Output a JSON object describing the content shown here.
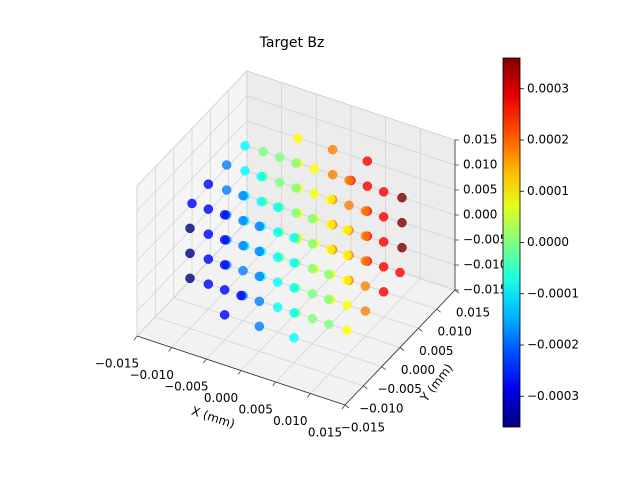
{
  "chart_data": {
    "type": "scatter3d",
    "title": "Target Bz",
    "xlabel": "X (mm)",
    "ylabel": "Y (mm)",
    "colormap": "jet",
    "x": [
      0,
      -0.005,
      0,
      0.005,
      -0.01,
      -0.005,
      0,
      0.005,
      0.01,
      -0.01,
      -0.005,
      0,
      0.005,
      0.01,
      -0.01,
      -0.005,
      0,
      0.005,
      0.01,
      -0.005,
      0,
      0.005,
      -0.01,
      -0.005,
      0,
      0.005,
      0.01,
      -0.01,
      -0.005,
      0,
      0.005,
      0.01,
      -0.01,
      -0.005,
      0,
      0.005,
      0.01,
      -0.01,
      -0.005,
      0,
      0.005,
      0.01,
      -0.01,
      -0.005,
      0,
      0.005,
      0.01,
      0,
      -0.01,
      -0.005,
      0,
      0.005,
      0.01,
      -0.01,
      -0.005,
      0,
      0.005,
      0.01,
      -0.015,
      -0.01,
      -0.005,
      0,
      0.005,
      0.01,
      0.015,
      -0.01,
      -0.005,
      0,
      0.005,
      0.01,
      -0.01,
      -0.005,
      0,
      0.005,
      0.01,
      0,
      -0.01,
      -0.005,
      0,
      0.005,
      0.01,
      -0.01,
      -0.005,
      0,
      0.005,
      0.01,
      -0.01,
      -0.005,
      0,
      0.005,
      0.01,
      -0.01,
      -0.005,
      0,
      0.005,
      0.01,
      -0.01,
      -0.005,
      0,
      0.005,
      0.01,
      -0.005,
      0,
      0.005,
      -0.01,
      -0.005,
      0,
      0.005,
      0.01,
      -0.01,
      -0.005,
      0,
      0.005,
      0.01,
      -0.01,
      -0.005,
      0,
      0.005,
      0.01,
      -0.005,
      0,
      0.005,
      0
    ],
    "y": [
      0,
      -0.01,
      -0.01,
      -0.01,
      -0.005,
      -0.005,
      -0.005,
      -0.005,
      -0.005,
      0,
      0,
      0,
      0,
      0,
      0.005,
      0.005,
      0.005,
      0.005,
      0.005,
      0.01,
      0.01,
      0.01,
      -0.01,
      -0.01,
      -0.01,
      -0.01,
      -0.01,
      -0.005,
      -0.005,
      -0.005,
      -0.005,
      -0.005,
      0,
      0,
      0,
      0,
      0,
      0.005,
      0.005,
      0.005,
      0.005,
      0.005,
      0.01,
      0.01,
      0.01,
      0.01,
      0.01,
      -0.015,
      -0.01,
      -0.01,
      -0.01,
      -0.01,
      -0.01,
      -0.005,
      -0.005,
      -0.005,
      -0.005,
      -0.005,
      0,
      0,
      0,
      0,
      0,
      0,
      0,
      0.005,
      0.005,
      0.005,
      0.005,
      0.005,
      0.01,
      0.01,
      0.01,
      0.01,
      0.01,
      0.015,
      -0.01,
      -0.01,
      -0.01,
      -0.01,
      -0.01,
      -0.005,
      -0.005,
      -0.005,
      -0.005,
      -0.005,
      0,
      0,
      0,
      0,
      0,
      0.005,
      0.005,
      0.005,
      0.005,
      0.005,
      0.01,
      0.01,
      0.01,
      0.01,
      0.01,
      -0.01,
      -0.01,
      -0.01,
      -0.005,
      -0.005,
      -0.005,
      -0.005,
      -0.005,
      0,
      0,
      0,
      0,
      0,
      0.005,
      0.005,
      0.005,
      0.005,
      0.005,
      0.01,
      0.01,
      0.01,
      0
    ],
    "z": [
      -0.015,
      -0.01,
      -0.01,
      -0.01,
      -0.01,
      -0.01,
      -0.01,
      -0.01,
      -0.01,
      -0.01,
      -0.01,
      -0.01,
      -0.01,
      -0.01,
      -0.01,
      -0.01,
      -0.01,
      -0.01,
      -0.01,
      -0.01,
      -0.01,
      -0.01,
      -0.005,
      -0.005,
      -0.005,
      -0.005,
      -0.005,
      -0.005,
      -0.005,
      -0.005,
      -0.005,
      -0.005,
      -0.005,
      -0.005,
      -0.005,
      -0.005,
      -0.005,
      -0.005,
      -0.005,
      -0.005,
      -0.005,
      -0.005,
      -0.005,
      -0.005,
      -0.005,
      -0.005,
      -0.005,
      0,
      0,
      0,
      0,
      0,
      0,
      0,
      0,
      0,
      0,
      0,
      0,
      0,
      0,
      0,
      0,
      0,
      0,
      0,
      0,
      0,
      0,
      0,
      0,
      0,
      0,
      0,
      0,
      0,
      0.005,
      0.005,
      0.005,
      0.005,
      0.005,
      0.005,
      0.005,
      0.005,
      0.005,
      0.005,
      0.005,
      0.005,
      0.005,
      0.005,
      0.005,
      0.005,
      0.005,
      0.005,
      0.005,
      0.005,
      0.005,
      0.005,
      0.005,
      0.005,
      0.005,
      0.01,
      0.01,
      0.01,
      0.01,
      0.01,
      0.01,
      0.01,
      0.01,
      0.01,
      0.01,
      0.01,
      0.01,
      0.01,
      0.01,
      0.01,
      0.01,
      0.01,
      0.01,
      0.01,
      0.01,
      0.01,
      0.015
    ],
    "values": [
      0,
      -0.00027,
      -0.00018,
      -9e-05,
      -0.00027,
      -0.00018,
      -9e-05,
      0,
      9e-05,
      -0.00018,
      -9e-05,
      0,
      9e-05,
      0.00018,
      -9e-05,
      0,
      9e-05,
      0.00018,
      0.00027,
      9e-05,
      0.00018,
      0.00027,
      -0.00036,
      -0.00027,
      -0.00018,
      -9e-05,
      0,
      -0.00027,
      -0.00018,
      -9e-05,
      0,
      9e-05,
      -0.00018,
      -9e-05,
      0,
      9e-05,
      0.00018,
      -9e-05,
      0,
      9e-05,
      0.00018,
      0.00027,
      0,
      9e-05,
      0.00018,
      0.00027,
      0.00036,
      -0.00027,
      -0.00036,
      -0.00027,
      -0.00018,
      -9e-05,
      0,
      -0.00027,
      -0.00018,
      -9e-05,
      0,
      9e-05,
      -0.00027,
      -0.00018,
      -9e-05,
      0,
      9e-05,
      0.00018,
      0.00027,
      -9e-05,
      0,
      9e-05,
      0.00018,
      0.00027,
      0,
      9e-05,
      0.00018,
      0.00027,
      0.00036,
      0.00027,
      -0.00036,
      -0.00027,
      -0.00018,
      -9e-05,
      0,
      -0.00027,
      -0.00018,
      -9e-05,
      0,
      9e-05,
      -0.00018,
      -9e-05,
      0,
      9e-05,
      0.00018,
      -9e-05,
      0,
      9e-05,
      0.00018,
      0.00027,
      0,
      9e-05,
      0.00018,
      0.00027,
      0.00036,
      -0.00027,
      -0.00018,
      -9e-05,
      -0.00027,
      -0.00018,
      -9e-05,
      0,
      9e-05,
      -0.00018,
      -9e-05,
      0,
      9e-05,
      0.00018,
      -9e-05,
      0,
      9e-05,
      0.00018,
      0.00027,
      9e-05,
      0.00018,
      0.00027,
      0
    ],
    "clim": [
      -0.00036,
      0.00036
    ],
    "xlim": [
      -0.015,
      0.015
    ],
    "ylim": [
      -0.015,
      0.015
    ],
    "zlim": [
      -0.015,
      0.015
    ],
    "xticks": [
      {
        "value": -0.015,
        "label": "−0.015"
      },
      {
        "value": -0.01,
        "label": "−0.010"
      },
      {
        "value": -0.005,
        "label": "−0.005"
      },
      {
        "value": 0,
        "label": "0.000"
      },
      {
        "value": 0.005,
        "label": "0.005"
      },
      {
        "value": 0.01,
        "label": "0.010"
      },
      {
        "value": 0.015,
        "label": "0.015"
      }
    ],
    "yticks": [
      {
        "value": -0.015,
        "label": "−0.015"
      },
      {
        "value": -0.01,
        "label": "−0.010"
      },
      {
        "value": -0.005,
        "label": "−0.005"
      },
      {
        "value": 0,
        "label": "0.000"
      },
      {
        "value": 0.005,
        "label": "0.005"
      },
      {
        "value": 0.01,
        "label": "0.010"
      },
      {
        "value": 0.015,
        "label": "0.015"
      }
    ],
    "zticks": [
      {
        "value": -0.015,
        "label": "−0.015"
      },
      {
        "value": -0.01,
        "label": "−0.010"
      },
      {
        "value": -0.005,
        "label": "−0.005"
      },
      {
        "value": 0,
        "label": "0.000"
      },
      {
        "value": 0.005,
        "label": "0.005"
      },
      {
        "value": 0.01,
        "label": "0.010"
      },
      {
        "value": 0.015,
        "label": "0.015"
      }
    ],
    "cbar_ticks": [
      {
        "value": -0.0003,
        "label": "−0.0003"
      },
      {
        "value": -0.0002,
        "label": "−0.0002"
      },
      {
        "value": -0.0001,
        "label": "−0.0001"
      },
      {
        "value": 0,
        "label": "0.0000"
      },
      {
        "value": 0.0001,
        "label": "0.0001"
      },
      {
        "value": 0.0002,
        "label": "0.0002"
      },
      {
        "value": 0.0003,
        "label": "0.0003"
      }
    ],
    "grid": true
  }
}
